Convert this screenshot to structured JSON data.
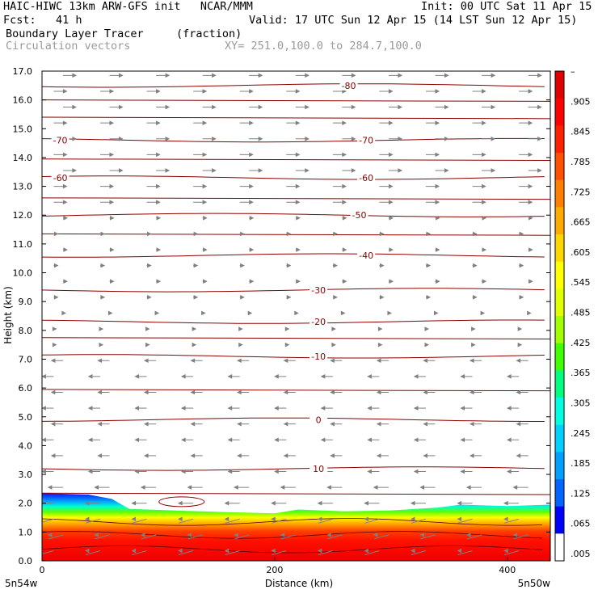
{
  "header": {
    "model": "HAIC-HIWC 13km ARW-GFS init",
    "org": "NCAR/MMM",
    "init": "Init: 00 UTC Sat 11 Apr 15",
    "fcst_label": "Fcst:",
    "fcst_value": "41 h",
    "valid": "Valid: 17 UTC Sun 12 Apr 15 (14 LST Sun 12 Apr 15)",
    "field": "Boundary Layer Tracer",
    "units": "(fraction)",
    "vectors": "Circulation vectors",
    "xy": "XY= 251.0,100.0 to 284.7,100.0"
  },
  "chart_data": {
    "type": "heatmap",
    "xlabel": "Distance (km)",
    "ylabel": "Height (km)",
    "xlim": [
      0,
      437
    ],
    "ylim": [
      0,
      17
    ],
    "x_ticks": [
      0,
      200,
      400
    ],
    "x_tick_labels": [
      "0",
      "200",
      "400"
    ],
    "x_end_labels": {
      "left": "5n54w",
      "right": "5n50w"
    },
    "y_ticks": [
      0,
      1,
      2,
      3,
      4,
      5,
      6,
      7,
      8,
      9,
      10,
      11,
      12,
      13,
      14,
      15,
      16,
      17
    ],
    "y_tick_labels": [
      "0.0",
      "1.0",
      "2.0",
      "3.0",
      "4.0",
      "5.0",
      "6.0",
      "7.0",
      "8.0",
      "9.0",
      "10.0",
      "11.0",
      "12.0",
      "13.0",
      "14.0",
      "15.0",
      "16.0",
      "17.0"
    ],
    "colorbar": {
      "labels": [
        ".005",
        ".065",
        ".125",
        ".185",
        ".245",
        ".305",
        ".365",
        ".425",
        ".485",
        ".545",
        ".605",
        ".665",
        ".725",
        ".785",
        ".845",
        ".905",
        "–"
      ],
      "colors": [
        "#ffffff",
        "#0000ff",
        "#0064ff",
        "#00a0ff",
        "#00d0ff",
        "#00ffe0",
        "#00ff80",
        "#40ff00",
        "#a0ff00",
        "#e0ff00",
        "#ffff00",
        "#ffd700",
        "#ffaa00",
        "#ff8000",
        "#ff5000",
        "#ff2000",
        "#ff0000",
        "#e00000"
      ]
    },
    "temperature_contours": [
      {
        "label": "10",
        "height_km": 3.2,
        "label_x_km": 237
      },
      {
        "label": "0",
        "height_km": 4.9,
        "label_x_km": 237
      },
      {
        "label": "-10",
        "height_km": 7.1,
        "label_x_km": 237
      },
      {
        "label": "-20",
        "height_km": 8.3,
        "label_x_km": 237
      },
      {
        "label": "-30",
        "height_km": 9.4,
        "label_x_km": 237
      },
      {
        "label": "-40",
        "height_km": 10.6,
        "label_x_km": 278
      },
      {
        "label": "-50",
        "height_km": 12.0,
        "label_x_km": 272
      },
      {
        "label": "-60",
        "height_km": 13.3,
        "label_x_km": 278
      },
      {
        "label": "-60",
        "height_km": 13.3,
        "label_x_km": 15
      },
      {
        "label": "-70",
        "height_km": 14.6,
        "label_x_km": 278
      },
      {
        "label": "-70",
        "height_km": 14.6,
        "label_x_km": 15
      },
      {
        "label": "-80",
        "height_km": 16.5,
        "label_x_km": 263
      }
    ],
    "tracer_top_km": [
      [
        0,
        2.35
      ],
      [
        40,
        2.3
      ],
      [
        60,
        2.15
      ],
      [
        75,
        1.8
      ],
      [
        150,
        1.7
      ],
      [
        200,
        1.65
      ],
      [
        220,
        1.78
      ],
      [
        260,
        1.72
      ],
      [
        300,
        1.75
      ],
      [
        340,
        1.85
      ],
      [
        360,
        1.95
      ],
      [
        400,
        1.9
      ],
      [
        437,
        1.95
      ]
    ]
  },
  "colors": {
    "contour": "#8b0000",
    "vector": "#808080",
    "axis": "#000000"
  }
}
